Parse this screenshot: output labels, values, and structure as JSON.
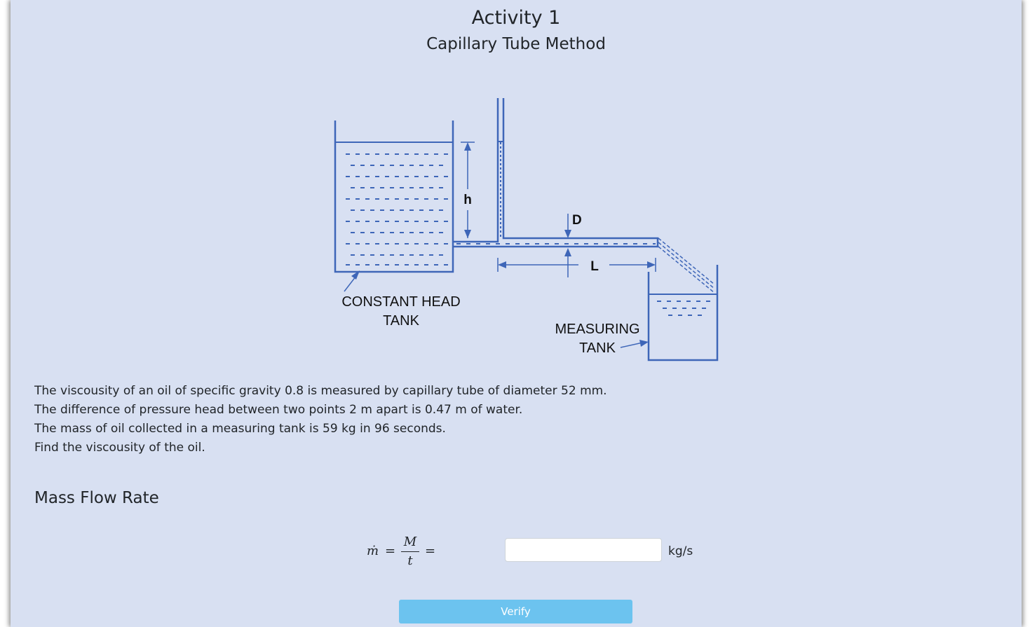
{
  "header": {
    "title": "Activity 1",
    "subtitle": "Capillary Tube Method"
  },
  "diagram": {
    "label_h": "h",
    "label_d": "D",
    "label_l": "L",
    "constant_head_tank": [
      "CONSTANT HEAD",
      "TANK"
    ],
    "measuring_tank": [
      "MEASURING",
      "TANK"
    ],
    "line_color": "#3e66b8"
  },
  "problem": {
    "lines": [
      "The viscousity of an oil of specific gravity 0.8 is measured by capillary tube of diameter 52 mm.",
      "The difference of pressure head between two points 2 m apart is 0.47 m of water.",
      "The mass of oil collected in a measuring tank is 59 kg in 96 seconds.",
      "Find the viscousity of the oil."
    ]
  },
  "section": {
    "title": "Mass Flow Rate"
  },
  "formula": {
    "lhs": "ṁ",
    "eq": "=",
    "numerator": "M",
    "denominator": "t"
  },
  "answer": {
    "value": "",
    "placeholder": "",
    "unit": "kg/s"
  },
  "verify_button": {
    "label": "Verify",
    "color": "#6cc3ef"
  }
}
